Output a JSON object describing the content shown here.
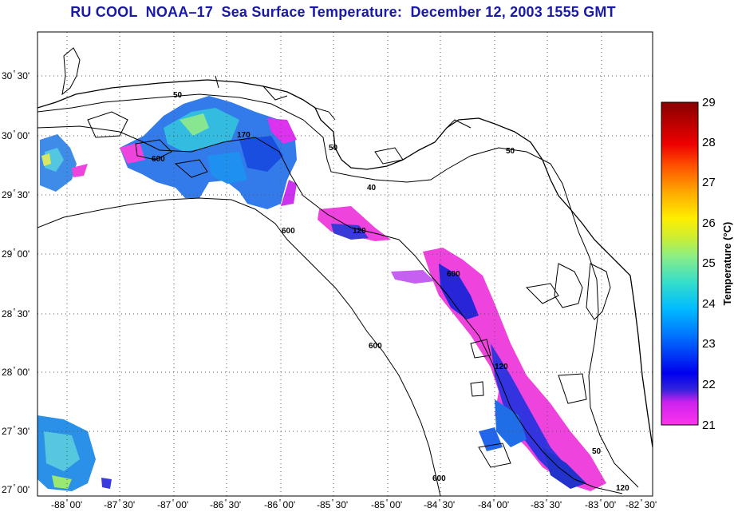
{
  "title": "RU COOL  NOAA–17  Sea Surface Temperature:  December 12, 2003 1555 GMT",
  "map": {
    "lat_labels": [
      {
        "deg": "30",
        "min": "30'",
        "lat": 30.5
      },
      {
        "deg": "30",
        "min": "00'",
        "lat": 30.0
      },
      {
        "deg": "29",
        "min": "30'",
        "lat": 29.5
      },
      {
        "deg": "29",
        "min": "00'",
        "lat": 29.0
      },
      {
        "deg": "28",
        "min": "30'",
        "lat": 28.5
      },
      {
        "deg": "28",
        "min": "00'",
        "lat": 28.0
      },
      {
        "deg": "27",
        "min": "30'",
        "lat": 27.5
      },
      {
        "deg": "27",
        "min": "00'",
        "lat": 27.0
      }
    ],
    "lon_labels": [
      {
        "deg": "-88",
        "min": "00'",
        "lon": -88.0
      },
      {
        "deg": "-87",
        "min": "30'",
        "lon": -87.5
      },
      {
        "deg": "-87",
        "min": "00'",
        "lon": -87.0
      },
      {
        "deg": "-86",
        "min": "30'",
        "lon": -86.5
      },
      {
        "deg": "-86",
        "min": "00'",
        "lon": -86.0
      },
      {
        "deg": "-85",
        "min": "30'",
        "lon": -85.5
      },
      {
        "deg": "-85",
        "min": "00'",
        "lon": -85.0
      },
      {
        "deg": "-84",
        "min": "30'",
        "lon": -84.5
      },
      {
        "deg": "-84",
        "min": "00'",
        "lon": -84.0
      },
      {
        "deg": "-83",
        "min": "30'",
        "lon": -83.5
      },
      {
        "deg": "-83",
        "min": "00'",
        "lon": -83.0
      },
      {
        "deg": "-82",
        "min": "30'",
        "lon": -82.5
      }
    ],
    "contour_labels": [
      "50",
      "170",
      "50",
      "600",
      "40",
      "120",
      "600",
      "600",
      "50",
      "120",
      "50",
      "600",
      "120",
      "600"
    ]
  },
  "colorbar": {
    "label": "Temperature (°C)",
    "ticks": [
      "29",
      "28",
      "27",
      "26",
      "25",
      "24",
      "23",
      "22",
      "21"
    ],
    "range": [
      21,
      29
    ]
  }
}
